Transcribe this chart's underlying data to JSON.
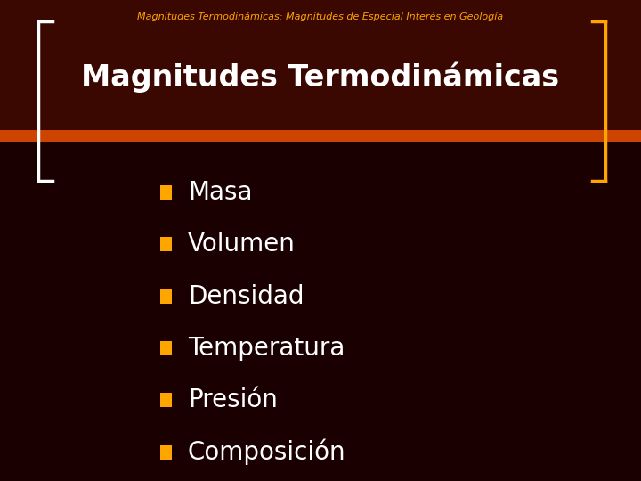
{
  "background_color": "#1a0000",
  "header_bg_color": "#3a0800",
  "orange_stripe_color": "#CC4400",
  "top_label": "Magnitudes Termodinámicas: Magnitudes de Especial Interés en Geología",
  "top_label_color": "#FFA500",
  "title": "Magnitudes Termodinámicas",
  "title_color": "#FFFFFF",
  "bullet_color": "#FFA500",
  "bullet_text_color": "#FFFFFF",
  "items": [
    "Masa",
    "Volumen",
    "Densidad",
    "Temperatura",
    "Presión",
    "Composición"
  ],
  "bracket_color": "#FFA500",
  "white_bracket_color": "#FFFFFF"
}
